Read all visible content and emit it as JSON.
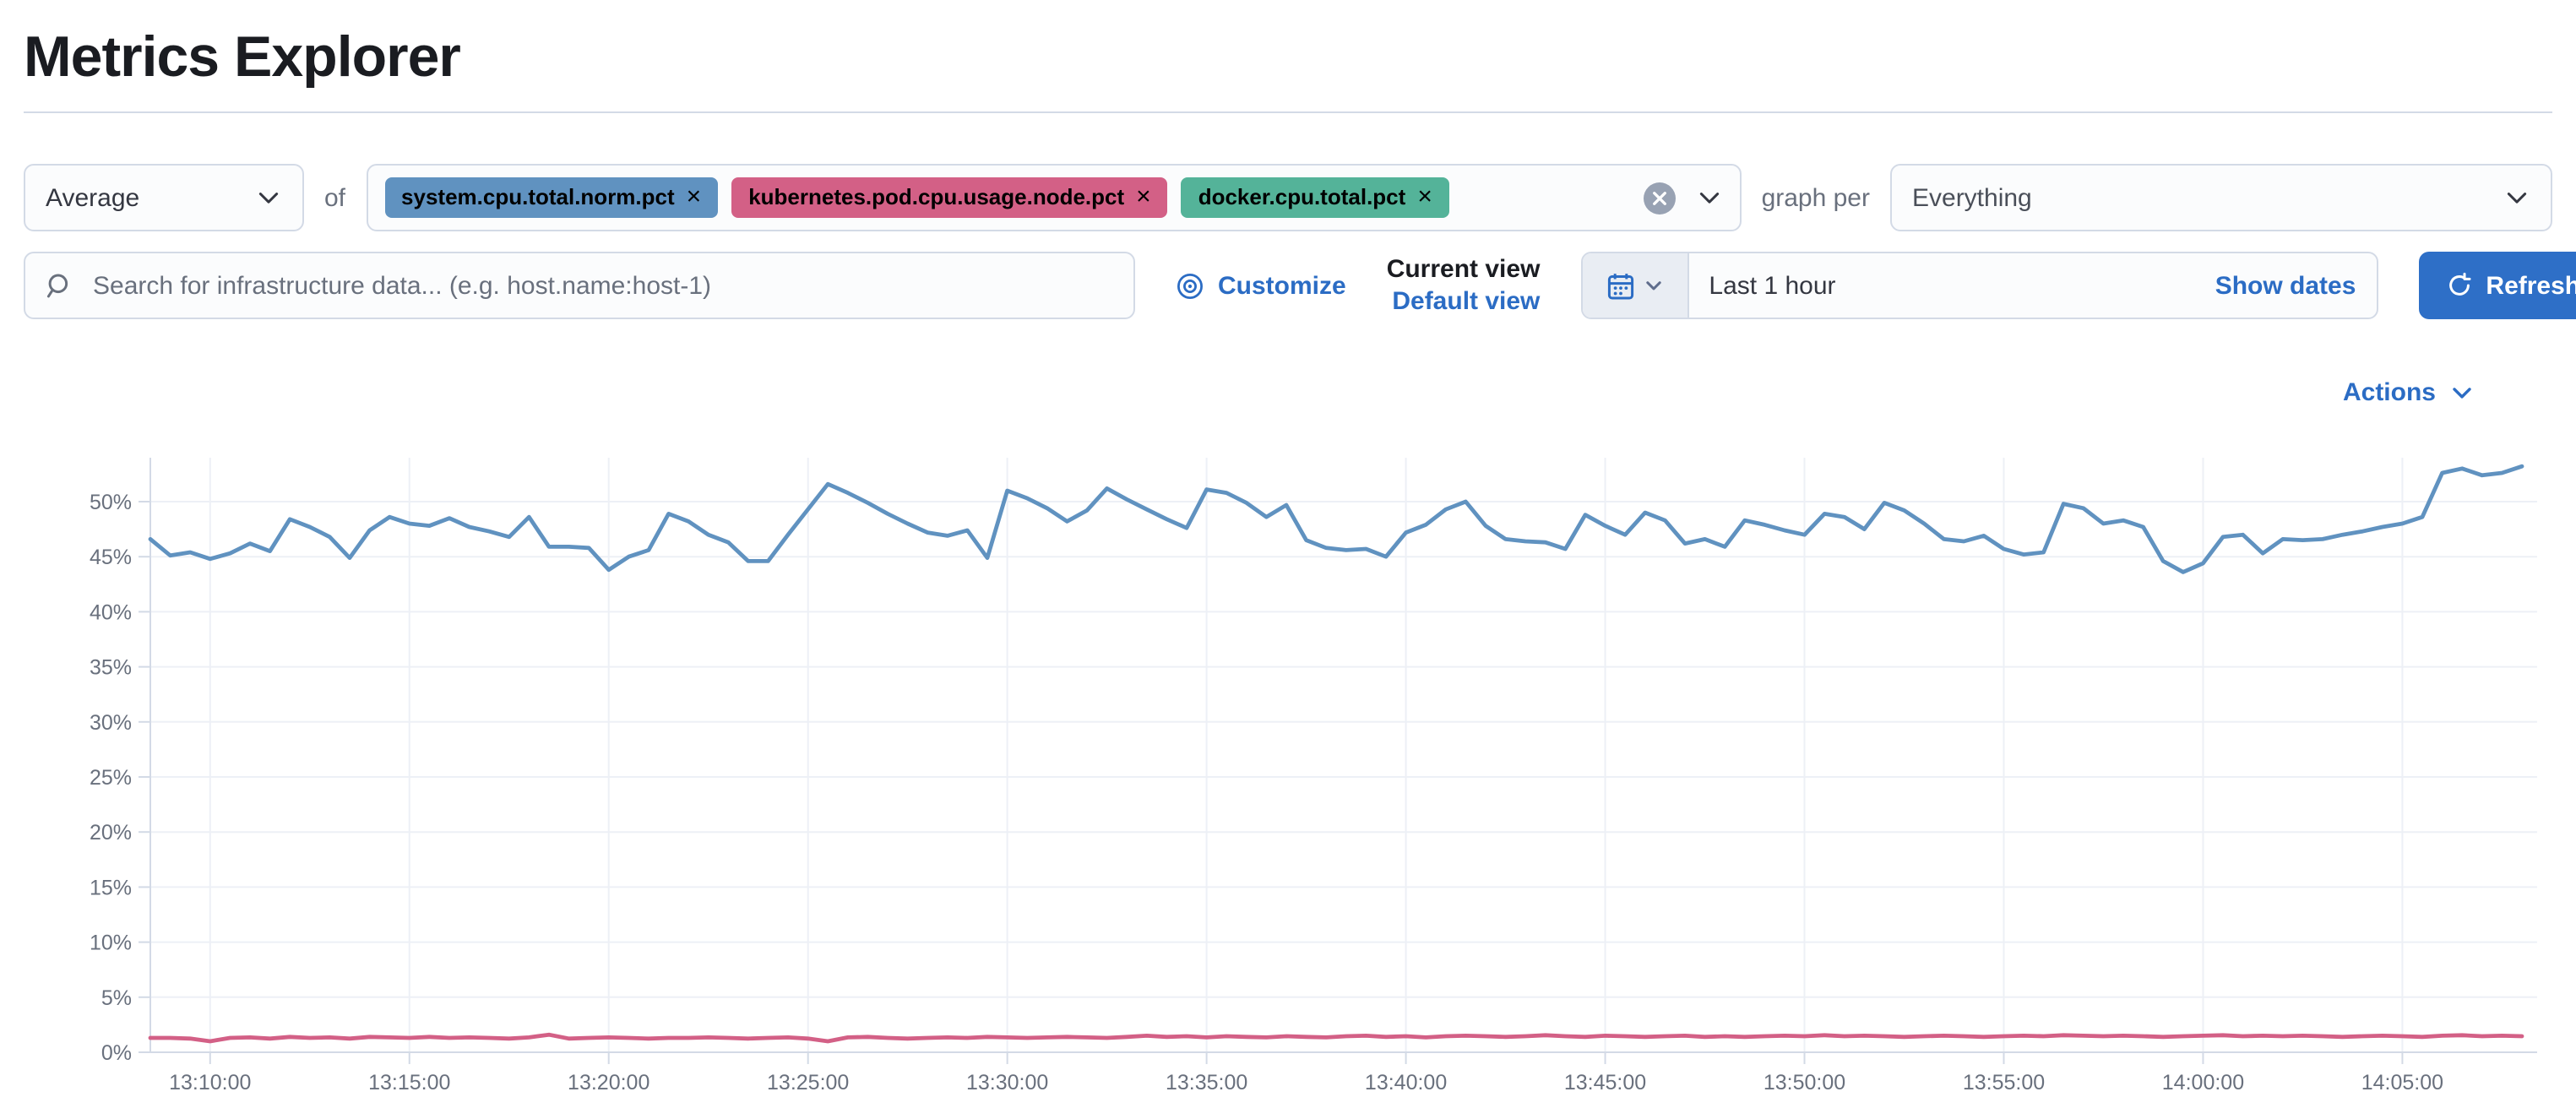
{
  "page": {
    "title": "Metrics Explorer"
  },
  "toolbar": {
    "aggregation_value": "Average",
    "of_label": "of",
    "metrics": [
      {
        "label": "system.cpu.total.norm.pct",
        "color": "#6092C0"
      },
      {
        "label": "kubernetes.pod.cpu.usage.node.pct",
        "color": "#D36086"
      },
      {
        "label": "docker.cpu.total.pct",
        "color": "#54B399"
      }
    ],
    "graph_per_label": "graph per",
    "group_by_value": "Everything"
  },
  "search": {
    "placeholder": "Search for infrastructure data... (e.g. host.name:host-1)"
  },
  "view_controls": {
    "customize_label": "Customize",
    "current_view_label": "Current view",
    "view_name": "Default view"
  },
  "time_picker": {
    "value": "Last 1 hour",
    "show_dates_label": "Show dates",
    "refresh_label": "Refresh"
  },
  "actions": {
    "label": "Actions"
  },
  "theme": {
    "link_blue": "#2B6CC4",
    "primary_button_blue": "#2E6FC7",
    "border_gray": "#D3DAE6",
    "axis_text_gray": "#69707D"
  },
  "chart_data": {
    "type": "line",
    "y_unit": "%",
    "ylim": [
      0,
      54
    ],
    "grid": true,
    "legend": "none",
    "x_start": "13:08:30",
    "x_interval_seconds": 30,
    "x_tick_labels": [
      "13:10:00",
      "13:15:00",
      "13:20:00",
      "13:25:00",
      "13:30:00",
      "13:35:00",
      "13:40:00",
      "13:45:00",
      "13:50:00",
      "13:55:00",
      "14:00:00",
      "14:05:00"
    ],
    "y_tick_labels": [
      "0%",
      "5%",
      "10%",
      "15%",
      "20%",
      "25%",
      "30%",
      "35%",
      "40%",
      "45%",
      "50%"
    ],
    "y_tick_values": [
      0,
      5,
      10,
      15,
      20,
      25,
      30,
      35,
      40,
      45,
      50
    ],
    "first_tick_index": 3,
    "tick_index_step": 10,
    "series": [
      {
        "name": "system.cpu.total.norm.pct",
        "color": "#6092C0",
        "values": [
          46.6,
          45.1,
          45.4,
          44.8,
          45.3,
          46.2,
          45.5,
          48.4,
          47.7,
          46.8,
          44.9,
          47.4,
          48.6,
          48.0,
          47.8,
          48.5,
          47.7,
          47.3,
          46.8,
          48.6,
          45.9,
          45.9,
          45.8,
          43.8,
          45.0,
          45.6,
          48.9,
          48.2,
          47.0,
          46.3,
          44.6,
          44.6,
          47.0,
          49.3,
          51.6,
          50.8,
          49.9,
          48.9,
          48.0,
          47.2,
          46.9,
          47.4,
          44.9,
          51.0,
          50.3,
          49.4,
          48.2,
          49.2,
          51.2,
          50.2,
          49.3,
          48.4,
          47.6,
          51.1,
          50.8,
          49.9,
          48.6,
          49.7,
          46.5,
          45.8,
          45.6,
          45.7,
          45.0,
          47.2,
          47.9,
          49.3,
          50.0,
          47.8,
          46.6,
          46.4,
          46.3,
          45.7,
          48.8,
          47.8,
          47.0,
          49.0,
          48.3,
          46.2,
          46.6,
          45.9,
          48.3,
          47.9,
          47.4,
          47.0,
          48.9,
          48.6,
          47.5,
          49.9,
          49.2,
          48.0,
          46.6,
          46.4,
          46.9,
          45.7,
          45.2,
          45.4,
          49.8,
          49.4,
          48.0,
          48.3,
          47.7,
          44.6,
          43.6,
          44.4,
          46.8,
          47.0,
          45.3,
          46.6,
          46.5,
          46.6,
          47.0,
          47.3,
          47.7,
          48.0,
          48.6,
          52.6,
          53.0,
          52.4,
          52.6,
          53.2
        ]
      },
      {
        "name": "kubernetes.pod.cpu.usage.node.pct",
        "color": "#D36086",
        "values": [
          1.3,
          1.3,
          1.25,
          1.0,
          1.3,
          1.35,
          1.25,
          1.4,
          1.3,
          1.35,
          1.25,
          1.4,
          1.35,
          1.3,
          1.4,
          1.3,
          1.35,
          1.3,
          1.25,
          1.35,
          1.6,
          1.25,
          1.3,
          1.35,
          1.3,
          1.25,
          1.3,
          1.3,
          1.35,
          1.3,
          1.25,
          1.3,
          1.35,
          1.25,
          1.0,
          1.35,
          1.4,
          1.3,
          1.25,
          1.3,
          1.35,
          1.3,
          1.4,
          1.35,
          1.3,
          1.35,
          1.4,
          1.35,
          1.3,
          1.4,
          1.5,
          1.4,
          1.45,
          1.35,
          1.45,
          1.4,
          1.35,
          1.45,
          1.4,
          1.35,
          1.45,
          1.5,
          1.4,
          1.45,
          1.35,
          1.45,
          1.5,
          1.45,
          1.4,
          1.45,
          1.55,
          1.45,
          1.4,
          1.5,
          1.45,
          1.4,
          1.45,
          1.5,
          1.4,
          1.45,
          1.4,
          1.45,
          1.5,
          1.45,
          1.55,
          1.45,
          1.5,
          1.45,
          1.4,
          1.45,
          1.5,
          1.45,
          1.4,
          1.45,
          1.5,
          1.45,
          1.55,
          1.5,
          1.45,
          1.5,
          1.45,
          1.4,
          1.45,
          1.5,
          1.55,
          1.45,
          1.5,
          1.45,
          1.5,
          1.45,
          1.4,
          1.45,
          1.5,
          1.45,
          1.4,
          1.5,
          1.55,
          1.45,
          1.5,
          1.45
        ]
      }
    ]
  }
}
